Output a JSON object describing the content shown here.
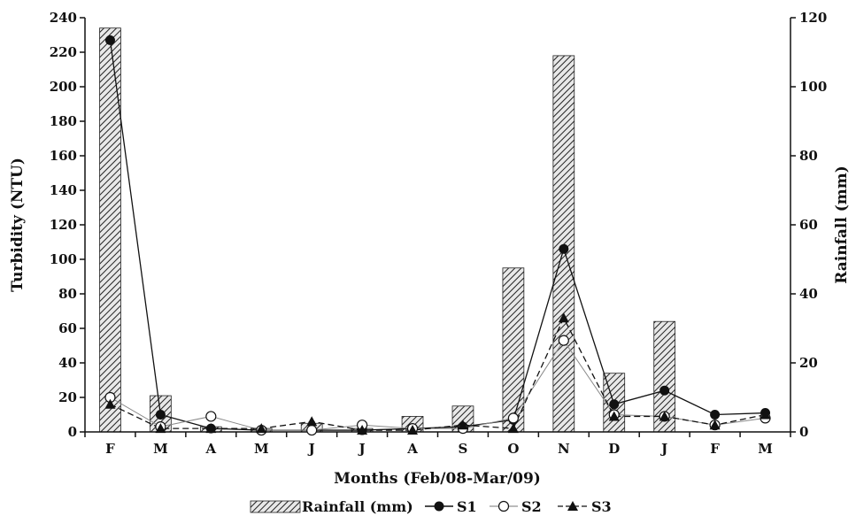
{
  "chart_data": {
    "type": "bar+line",
    "categories": [
      "F",
      "M",
      "A",
      "M",
      "J",
      "J",
      "A",
      "S",
      "O",
      "N",
      "D",
      "J",
      "F",
      "M"
    ],
    "xlabel": "Months (Feb/08-Mar/09)",
    "ylabel_left": "Turbidity (NTU)",
    "ylabel_right": "Rainfall (mm)",
    "ylim_left": [
      0,
      240
    ],
    "yticks_left": [
      0,
      20,
      40,
      60,
      80,
      100,
      120,
      140,
      160,
      180,
      200,
      220,
      240
    ],
    "ylim_right": [
      0,
      120
    ],
    "yticks_right": [
      0,
      20,
      40,
      60,
      80,
      100,
      120
    ],
    "bars": {
      "name": "Rainfall (mm)",
      "axis": "right",
      "values": [
        117,
        10.5,
        1.5,
        1,
        2.5,
        1,
        4.5,
        7.5,
        47.5,
        109,
        17,
        32,
        null,
        null
      ]
    },
    "series": [
      {
        "name": "S1",
        "axis": "left",
        "marker": "filled-circle",
        "line": "solid",
        "values": [
          227,
          10,
          2,
          1,
          1,
          1,
          2,
          3,
          7,
          106,
          16,
          24,
          10,
          11
        ]
      },
      {
        "name": "S2",
        "axis": "left",
        "marker": "open-circle",
        "line": "solid-thin",
        "values": [
          20,
          3,
          9,
          1,
          1,
          4,
          2,
          2,
          8,
          53,
          10,
          9,
          4,
          8
        ]
      },
      {
        "name": "S3",
        "axis": "left",
        "marker": "filled-triangle",
        "line": "dashed",
        "values": [
          16,
          2,
          2,
          2,
          6,
          1,
          1,
          4,
          2,
          66,
          9,
          9,
          4,
          10
        ]
      }
    ],
    "legend_position": "bottom",
    "grid": false
  }
}
